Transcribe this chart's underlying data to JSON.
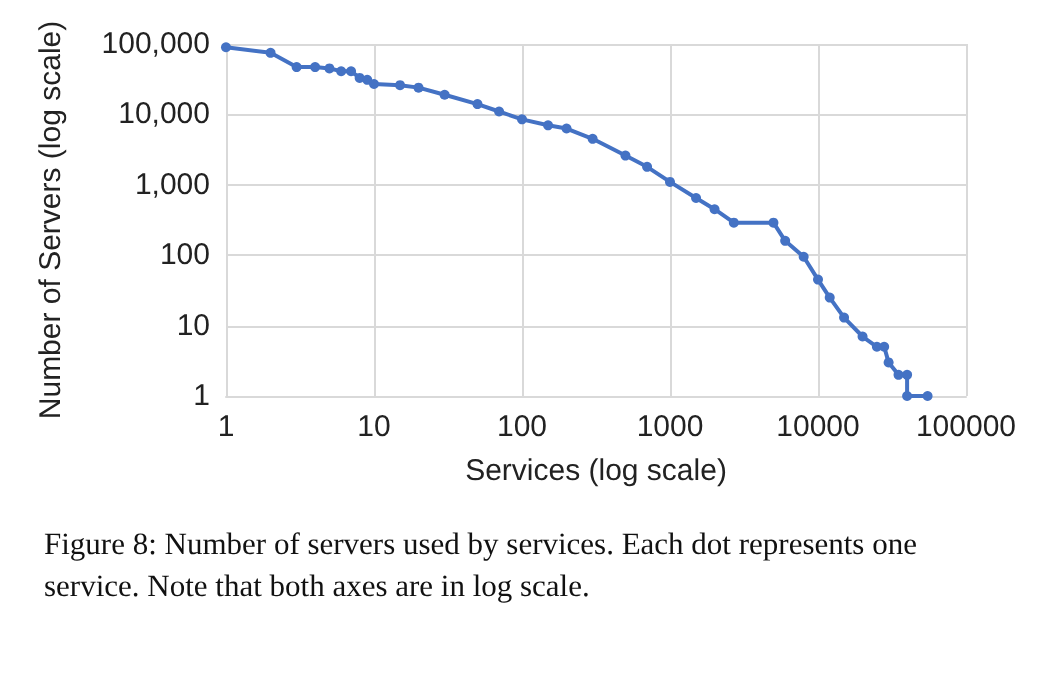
{
  "chart_data": {
    "type": "line",
    "xlabel": "Services (log scale)",
    "ylabel": "Number of Servers (log scale)",
    "annotations": [
      "Figure 8: Number of servers used by services. Each dot represents one service. Note that both axes are in log scale."
    ],
    "x": [
      1,
      2,
      3,
      4,
      5,
      6,
      7,
      8,
      9,
      10,
      15,
      20,
      30,
      50,
      70,
      100,
      150,
      200,
      300,
      500,
      700,
      1000,
      1500,
      2000,
      2700,
      5000,
      6000,
      8000,
      10000,
      12000,
      15000,
      20000,
      25000,
      28000,
      30000,
      35000,
      40000,
      40000,
      55000
    ],
    "series": [
      {
        "color": "#4472c4",
        "values": [
          90000,
          75000,
          47000,
          47000,
          45000,
          41000,
          41000,
          33000,
          31000,
          27000,
          26000,
          24000,
          19000,
          14000,
          11000,
          8500,
          7000,
          6300,
          4500,
          2600,
          1800,
          1100,
          650,
          450,
          290,
          290,
          160,
          95,
          45,
          25,
          13,
          7,
          5,
          5,
          3,
          2,
          2,
          1,
          1
        ]
      }
    ],
    "xlim": [
      1,
      100000
    ],
    "xticks": [
      1,
      10,
      100,
      1000,
      10000,
      100000
    ],
    "ylim": [
      1,
      100000
    ],
    "yticks": [
      1,
      10,
      100,
      {
        "value": 1000,
        "label": "1,000"
      },
      {
        "value": 10000,
        "label": "10,000"
      },
      {
        "value": 100000,
        "label": "100,000"
      }
    ],
    "log": "xy",
    "grid": true,
    "marker": "circle",
    "line_style": "solid"
  }
}
